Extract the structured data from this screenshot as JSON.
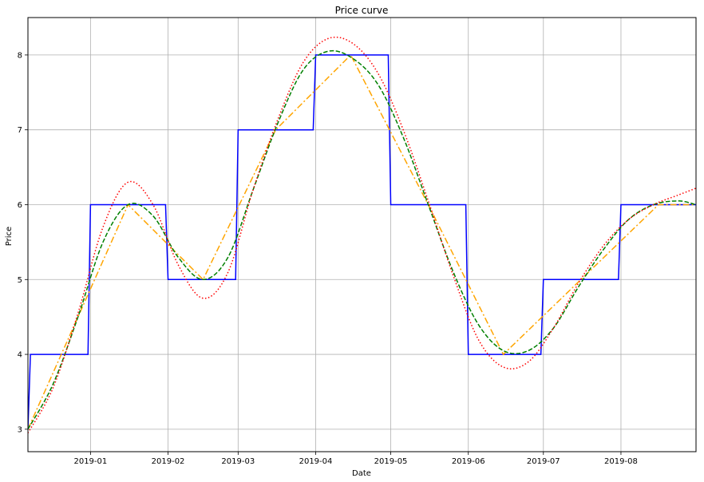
{
  "chart_data": {
    "type": "line",
    "title": "Price curve",
    "xlabel": "Date",
    "ylabel": "Price",
    "xlim": [
      "2018-12-07",
      "2019-08-31"
    ],
    "ylim": [
      2.7,
      8.5
    ],
    "grid": true,
    "x_ticks": [
      "2019-01-01",
      "2019-02-01",
      "2019-03-01",
      "2019-04-01",
      "2019-05-01",
      "2019-06-01",
      "2019-07-01",
      "2019-08-01"
    ],
    "x_tick_labels": [
      "2019-01",
      "2019-02",
      "2019-03",
      "2019-04",
      "2019-05",
      "2019-06",
      "2019-07",
      "2019-08"
    ],
    "y_ticks": [
      3,
      4,
      5,
      6,
      7,
      8
    ],
    "y_tick_labels": [
      "3",
      "4",
      "5",
      "6",
      "7",
      "8"
    ],
    "anchors": {
      "dates": [
        "2018-12-07",
        "2019-01-16",
        "2019-02-15",
        "2019-03-16",
        "2019-04-15",
        "2019-05-16",
        "2019-06-15",
        "2019-07-16",
        "2019-08-16",
        "2019-08-31"
      ],
      "values": [
        3,
        6,
        5,
        7,
        8,
        6,
        4,
        5,
        6,
        6
      ]
    },
    "series": [
      {
        "style": "step",
        "color": "#0000ff",
        "dash": "solid",
        "points": [
          [
            "2018-12-07",
            3
          ],
          [
            "2018-12-08",
            4
          ],
          [
            "2018-12-31",
            4
          ],
          [
            "2019-01-01",
            6
          ],
          [
            "2019-01-31",
            6
          ],
          [
            "2019-02-01",
            5
          ],
          [
            "2019-02-28",
            5
          ],
          [
            "2019-03-01",
            7
          ],
          [
            "2019-03-31",
            7
          ],
          [
            "2019-04-01",
            8
          ],
          [
            "2019-04-30",
            8
          ],
          [
            "2019-05-01",
            6
          ],
          [
            "2019-05-31",
            6
          ],
          [
            "2019-06-01",
            4
          ],
          [
            "2019-06-30",
            4
          ],
          [
            "2019-07-01",
            5
          ],
          [
            "2019-07-31",
            5
          ],
          [
            "2019-08-01",
            6
          ],
          [
            "2019-08-31",
            6
          ]
        ]
      },
      {
        "style": "linear",
        "color": "#ffa500",
        "dash": "dashdot",
        "points": [
          [
            "2018-12-07",
            3
          ],
          [
            "2019-01-16",
            6
          ],
          [
            "2019-02-15",
            5
          ],
          [
            "2019-03-16",
            7
          ],
          [
            "2019-04-15",
            8
          ],
          [
            "2019-05-16",
            6
          ],
          [
            "2019-06-15",
            4
          ],
          [
            "2019-07-16",
            5
          ],
          [
            "2019-08-16",
            6
          ],
          [
            "2019-08-31",
            6
          ]
        ]
      },
      {
        "style": "smooth",
        "color": "#008000",
        "dash": "dashed",
        "points": [
          [
            "2018-12-07",
            3.0
          ],
          [
            "2018-12-17",
            3.6
          ],
          [
            "2018-12-27",
            4.5
          ],
          [
            "2019-01-06",
            5.5
          ],
          [
            "2019-01-16",
            6.0
          ],
          [
            "2019-01-26",
            5.85
          ],
          [
            "2019-02-05",
            5.3
          ],
          [
            "2019-02-15",
            5.0
          ],
          [
            "2019-02-25",
            5.3
          ],
          [
            "2019-03-07",
            6.2
          ],
          [
            "2019-03-17",
            7.1
          ],
          [
            "2019-03-27",
            7.8
          ],
          [
            "2019-04-06",
            8.05
          ],
          [
            "2019-04-16",
            7.95
          ],
          [
            "2019-04-26",
            7.6
          ],
          [
            "2019-05-06",
            6.9
          ],
          [
            "2019-05-16",
            6.0
          ],
          [
            "2019-05-26",
            5.1
          ],
          [
            "2019-06-05",
            4.4
          ],
          [
            "2019-06-15",
            4.05
          ],
          [
            "2019-06-25",
            4.05
          ],
          [
            "2019-07-05",
            4.35
          ],
          [
            "2019-07-15",
            4.9
          ],
          [
            "2019-07-25",
            5.4
          ],
          [
            "2019-08-04",
            5.8
          ],
          [
            "2019-08-14",
            6.0
          ],
          [
            "2019-08-24",
            6.05
          ],
          [
            "2019-08-31",
            6.0
          ]
        ]
      },
      {
        "style": "smooth",
        "color": "#ff0000",
        "dash": "dotted",
        "points": [
          [
            "2018-12-07",
            2.95
          ],
          [
            "2018-12-17",
            3.55
          ],
          [
            "2018-12-27",
            4.55
          ],
          [
            "2019-01-06",
            5.7
          ],
          [
            "2019-01-16",
            6.3
          ],
          [
            "2019-01-26",
            6.0
          ],
          [
            "2019-02-05",
            5.2
          ],
          [
            "2019-02-15",
            4.75
          ],
          [
            "2019-02-25",
            5.1
          ],
          [
            "2019-03-07",
            6.2
          ],
          [
            "2019-03-17",
            7.15
          ],
          [
            "2019-03-27",
            7.9
          ],
          [
            "2019-04-06",
            8.22
          ],
          [
            "2019-04-16",
            8.15
          ],
          [
            "2019-04-26",
            7.75
          ],
          [
            "2019-05-06",
            7.0
          ],
          [
            "2019-05-16",
            6.05
          ],
          [
            "2019-05-26",
            5.05
          ],
          [
            "2019-06-05",
            4.2
          ],
          [
            "2019-06-15",
            3.83
          ],
          [
            "2019-06-25",
            3.9
          ],
          [
            "2019-07-05",
            4.35
          ],
          [
            "2019-07-15",
            4.95
          ],
          [
            "2019-07-25",
            5.45
          ],
          [
            "2019-08-04",
            5.8
          ],
          [
            "2019-08-14",
            6.0
          ],
          [
            "2019-08-24",
            6.13
          ],
          [
            "2019-08-31",
            6.22
          ]
        ]
      }
    ]
  }
}
